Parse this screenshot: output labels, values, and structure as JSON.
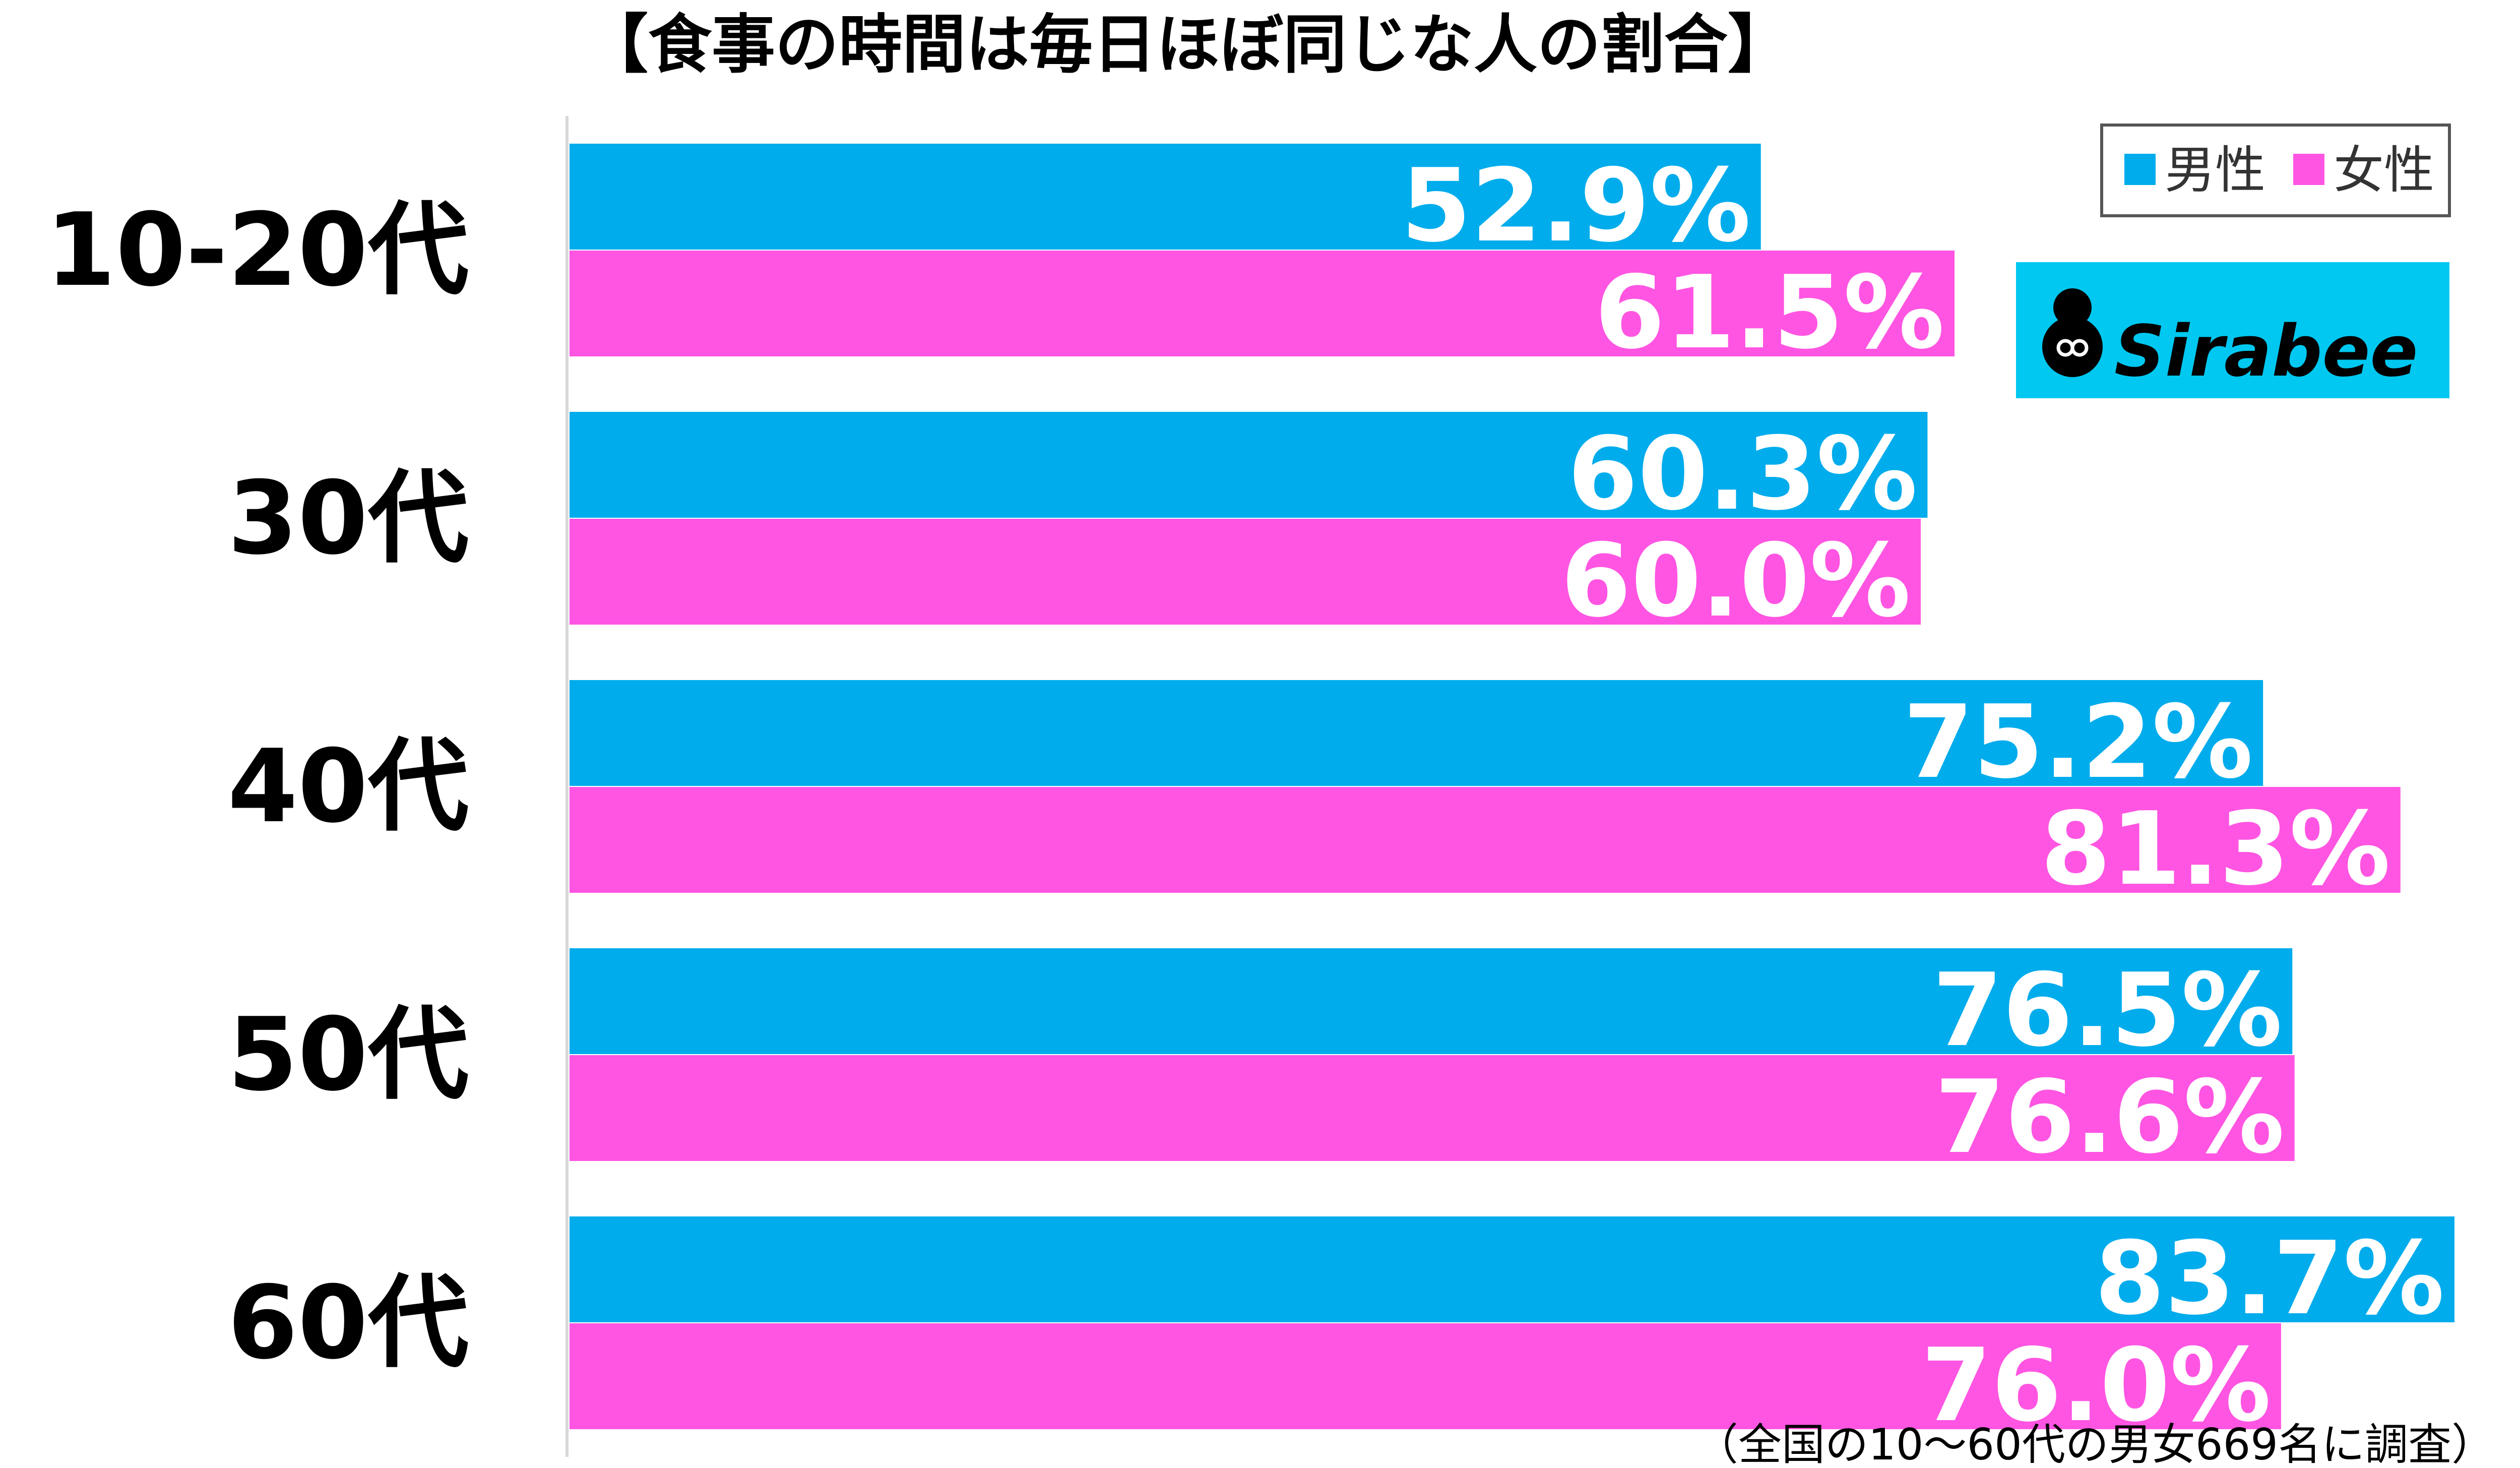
{
  "chart_data": {
    "type": "bar",
    "orientation": "horizontal",
    "title": "【食事の時間は毎日ほぼ同じな人の割合】",
    "categories": [
      "10-20代",
      "30代",
      "40代",
      "50代",
      "60代"
    ],
    "series": [
      {
        "name": "男性",
        "color": "#00acec",
        "values": [
          52.9,
          60.3,
          75.2,
          76.5,
          83.7
        ]
      },
      {
        "name": "女性",
        "color": "#ff55e2",
        "values": [
          61.5,
          60.0,
          81.3,
          76.6,
          76.0
        ]
      }
    ],
    "value_labels": [
      [
        "52.9%",
        "60.3%",
        "75.2%",
        "76.5%",
        "83.7%"
      ],
      [
        "61.5%",
        "60.0%",
        "81.3%",
        "76.6%",
        "76.0%"
      ]
    ],
    "xlim": [
      0,
      83.7
    ],
    "legend_position": "top-right",
    "grid": false
  },
  "logo": {
    "text": "Sirabee",
    "background": "#00c8f0"
  },
  "note": "（全国の10～60代の男女669名に調査）"
}
